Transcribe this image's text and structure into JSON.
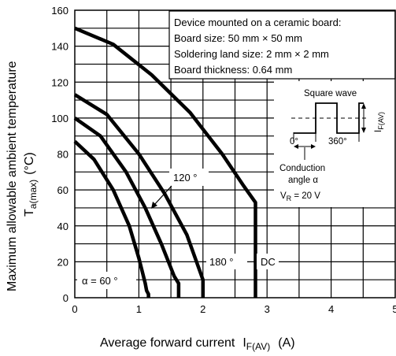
{
  "chart_data": {
    "type": "line",
    "xlabel": "Average forward current",
    "xlabel_symbol": "I",
    "xlabel_sub": "F(AV)",
    "xlabel_unit": "(A)",
    "ylabel": "Maximum allowable ambient temperature",
    "ylabel_symbol": "T",
    "ylabel_sub": "a(max)",
    "ylabel_unit": "(°C)",
    "xlim": [
      0,
      5
    ],
    "ylim": [
      0,
      160
    ],
    "x_ticks": [
      "0",
      "1",
      "2",
      "3",
      "4",
      "5"
    ],
    "y_ticks": [
      "0",
      "20",
      "40",
      "60",
      "80",
      "100",
      "120",
      "140",
      "160"
    ],
    "grid": true,
    "series": [
      {
        "name": "α = 60 °",
        "x": [
          0,
          0.3,
          0.6,
          0.85,
          1.0,
          1.1,
          1.12,
          1.15,
          1.15
        ],
        "y": [
          87,
          77,
          60,
          40,
          22,
          8,
          4,
          2,
          0
        ]
      },
      {
        "name": "120 °",
        "x": [
          0,
          0.4,
          0.8,
          1.1,
          1.35,
          1.55,
          1.62,
          1.62
        ],
        "y": [
          100,
          90,
          70,
          50,
          30,
          12,
          8,
          0
        ]
      },
      {
        "name": "180 °",
        "x": [
          0,
          0.5,
          1.0,
          1.4,
          1.75,
          1.95,
          2.0,
          2.0
        ],
        "y": [
          113,
          102,
          80,
          58,
          35,
          15,
          10,
          0
        ]
      },
      {
        "name": "DC",
        "x": [
          0,
          0.6,
          1.2,
          1.8,
          2.3,
          2.62,
          2.82,
          2.82
        ],
        "y": [
          150,
          141,
          124,
          103,
          80,
          63,
          53,
          0
        ]
      }
    ],
    "annotations": {
      "alpha60": "α = 60 °",
      "a120": "120 °",
      "a180": "180 °",
      "dc": "DC",
      "note_line1": "Device mounted on a ceramic board:",
      "note_line2": "Board size: 50 mm × 50 mm",
      "note_line3": "Soldering land size: 2 mm × 2 mm",
      "note_line4": "Board thickness: 0.64 mm",
      "square_wave": "Square wave",
      "deg0": "0°",
      "deg360": "360°",
      "if_label": "I",
      "if_sub": "F(AV)",
      "conduction1": "Conduction",
      "conduction2": "angle α",
      "vr": "V",
      "vr_sub": "R",
      "vr_value": " = 20 V"
    }
  }
}
